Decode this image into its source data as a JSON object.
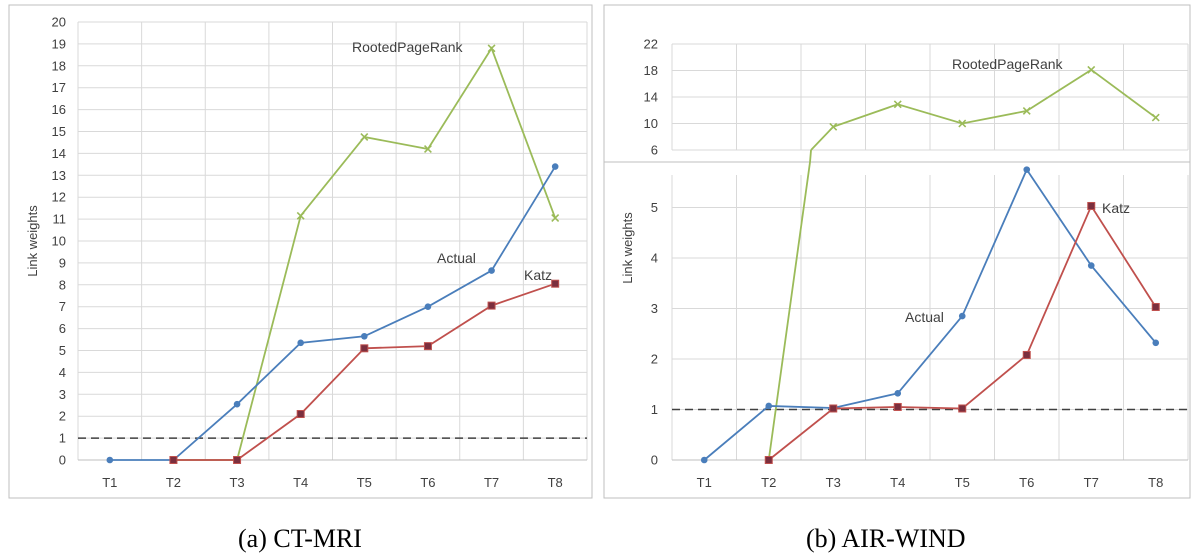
{
  "colors": {
    "actual": "#4a7ebb",
    "katz": "#c0504d",
    "katz_marker": "#7b2f3e",
    "rooted": "#9bbb59",
    "grid": "#d9d9d9",
    "axis": "#bfbfbf",
    "reference": "#404040"
  },
  "chart_data": [
    {
      "type": "line",
      "caption": "(a) CT-MRI",
      "ylabel": "Link weights",
      "categories": [
        "T1",
        "T2",
        "T3",
        "T4",
        "T5",
        "T6",
        "T7",
        "T8"
      ],
      "ylim": [
        0,
        20
      ],
      "yticks": [
        0,
        1,
        2,
        3,
        4,
        5,
        6,
        7,
        8,
        9,
        10,
        11,
        12,
        13,
        14,
        15,
        16,
        17,
        18,
        19,
        20
      ],
      "grid": true,
      "reference_line": 1,
      "series": [
        {
          "name": "Actual",
          "key": "actual",
          "values": [
            0,
            0,
            2.55,
            5.35,
            5.65,
            7.0,
            8.65,
            13.4
          ]
        },
        {
          "name": "Katz",
          "key": "katz",
          "values": [
            null,
            0,
            0,
            2.1,
            5.1,
            5.2,
            7.05,
            8.05
          ]
        },
        {
          "name": "RootedPageRank",
          "key": "rooted",
          "values": [
            null,
            0,
            0,
            11.15,
            14.75,
            14.2,
            18.8,
            11.05
          ]
        }
      ]
    },
    {
      "type": "line",
      "caption": "(b) AIR-WIND",
      "ylabel": "Link weights",
      "categories": [
        "T1",
        "T2",
        "T3",
        "T4",
        "T5",
        "T6",
        "T7",
        "T8"
      ],
      "broken_axis": true,
      "upper_ylim": [
        6,
        22
      ],
      "upper_yticks": [
        6,
        10,
        14,
        18,
        22
      ],
      "lower_ylim": [
        0,
        5.8
      ],
      "lower_yticks": [
        0,
        1,
        2,
        3,
        4,
        5
      ],
      "grid": true,
      "reference_line": 1,
      "series": [
        {
          "name": "Actual",
          "key": "actual",
          "values": [
            0,
            1.07,
            1.03,
            1.32,
            2.85,
            5.75,
            3.85,
            2.32
          ]
        },
        {
          "name": "Katz",
          "key": "katz",
          "values": [
            null,
            0,
            1.02,
            1.05,
            1.02,
            2.08,
            5.03,
            3.03
          ]
        },
        {
          "name": "RootedPageRank",
          "key": "rooted",
          "values": [
            null,
            0,
            9.5,
            12.9,
            10.0,
            11.9,
            18.1,
            10.9
          ]
        }
      ]
    }
  ]
}
